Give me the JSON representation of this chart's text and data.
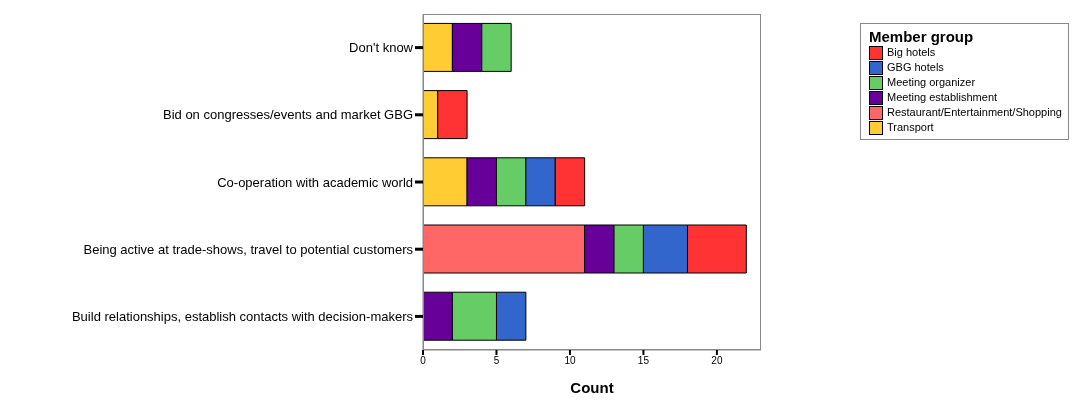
{
  "chart_data": {
    "type": "bar",
    "orientation": "horizontal",
    "stacked": true,
    "xlabel": "Count",
    "legend_title": "Member group",
    "legend": "top right",
    "categories": [
      "Don't know",
      "Bid on congresses/events and market GBG",
      "Co-operation with academic world",
      "Being active at trade-shows, travel to potential customers",
      "Build relationships, establish contacts with decision-makers"
    ],
    "xlim": [
      0,
      23
    ],
    "xticks": [
      0,
      5,
      10,
      15,
      20
    ],
    "series": [
      {
        "name": "Transport",
        "color": "#ffcc33",
        "values": [
          2,
          1,
          3,
          null,
          null
        ]
      },
      {
        "name": "Restaurant/Entertainment/Shopping",
        "color": "#ff6666",
        "values": [
          null,
          null,
          null,
          11,
          null
        ]
      },
      {
        "name": "Meeting establishment",
        "color": "#660099",
        "values": [
          2,
          null,
          2,
          2,
          2
        ]
      },
      {
        "name": "Meeting organizer",
        "color": "#66cc66",
        "values": [
          2,
          null,
          2,
          2,
          3
        ]
      },
      {
        "name": "GBG hotels",
        "color": "#3366cc",
        "values": [
          null,
          null,
          2,
          3,
          2
        ]
      },
      {
        "name": "Big hotels",
        "color": "#ff3333",
        "values": [
          null,
          2,
          2,
          4,
          null
        ]
      }
    ]
  }
}
